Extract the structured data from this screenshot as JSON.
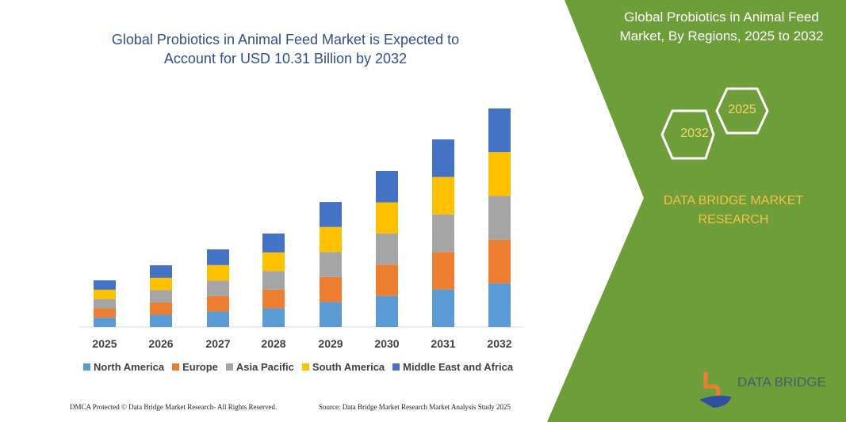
{
  "header": {
    "title": "Global Probiotics in Animal Feed Market is Expected to Account for USD 10.31 Billion by 2032"
  },
  "side_panel": {
    "title": "Global Probiotics in Animal Feed Market, By Regions, 2025 to 2032",
    "hex_start": "2025",
    "hex_end": "2032",
    "brand": "DATA BRIDGE MARKET RESEARCH",
    "logo_text": "DATA BRIDGE",
    "bg_color": "#6e9e3a"
  },
  "footer": {
    "left": "DMCA Protected © Data Bridge Market Research- All Rights Reserved.",
    "right": "Source: Data Bridge Market Research Market Analysis Study 2025"
  },
  "chart_data": {
    "type": "bar",
    "stacked": true,
    "title": "Global Probiotics in Animal Feed Market is Expected to Account for USD 10.31 Billion by 2032",
    "categories": [
      "2025",
      "2026",
      "2027",
      "2028",
      "2029",
      "2030",
      "2031",
      "2032"
    ],
    "legend_position": "bottom",
    "grid": false,
    "series": [
      {
        "name": "North America",
        "color": "#5b9bd5",
        "values": [
          0.44,
          0.58,
          0.73,
          0.88,
          1.18,
          1.47,
          1.77,
          2.06
        ]
      },
      {
        "name": "Europe",
        "color": "#ed7d31",
        "values": [
          0.44,
          0.58,
          0.73,
          0.88,
          1.18,
          1.47,
          1.77,
          2.06
        ]
      },
      {
        "name": "Asia Pacific",
        "color": "#a5a5a5",
        "values": [
          0.44,
          0.58,
          0.73,
          0.88,
          1.18,
          1.47,
          1.77,
          2.06
        ]
      },
      {
        "name": "South America",
        "color": "#ffc000",
        "values": [
          0.44,
          0.58,
          0.73,
          0.88,
          1.18,
          1.47,
          1.77,
          2.07
        ]
      },
      {
        "name": "Middle East and Africa",
        "color": "#4472c4",
        "values": [
          0.44,
          0.59,
          0.74,
          0.89,
          1.18,
          1.48,
          1.77,
          2.06
        ]
      }
    ]
  }
}
